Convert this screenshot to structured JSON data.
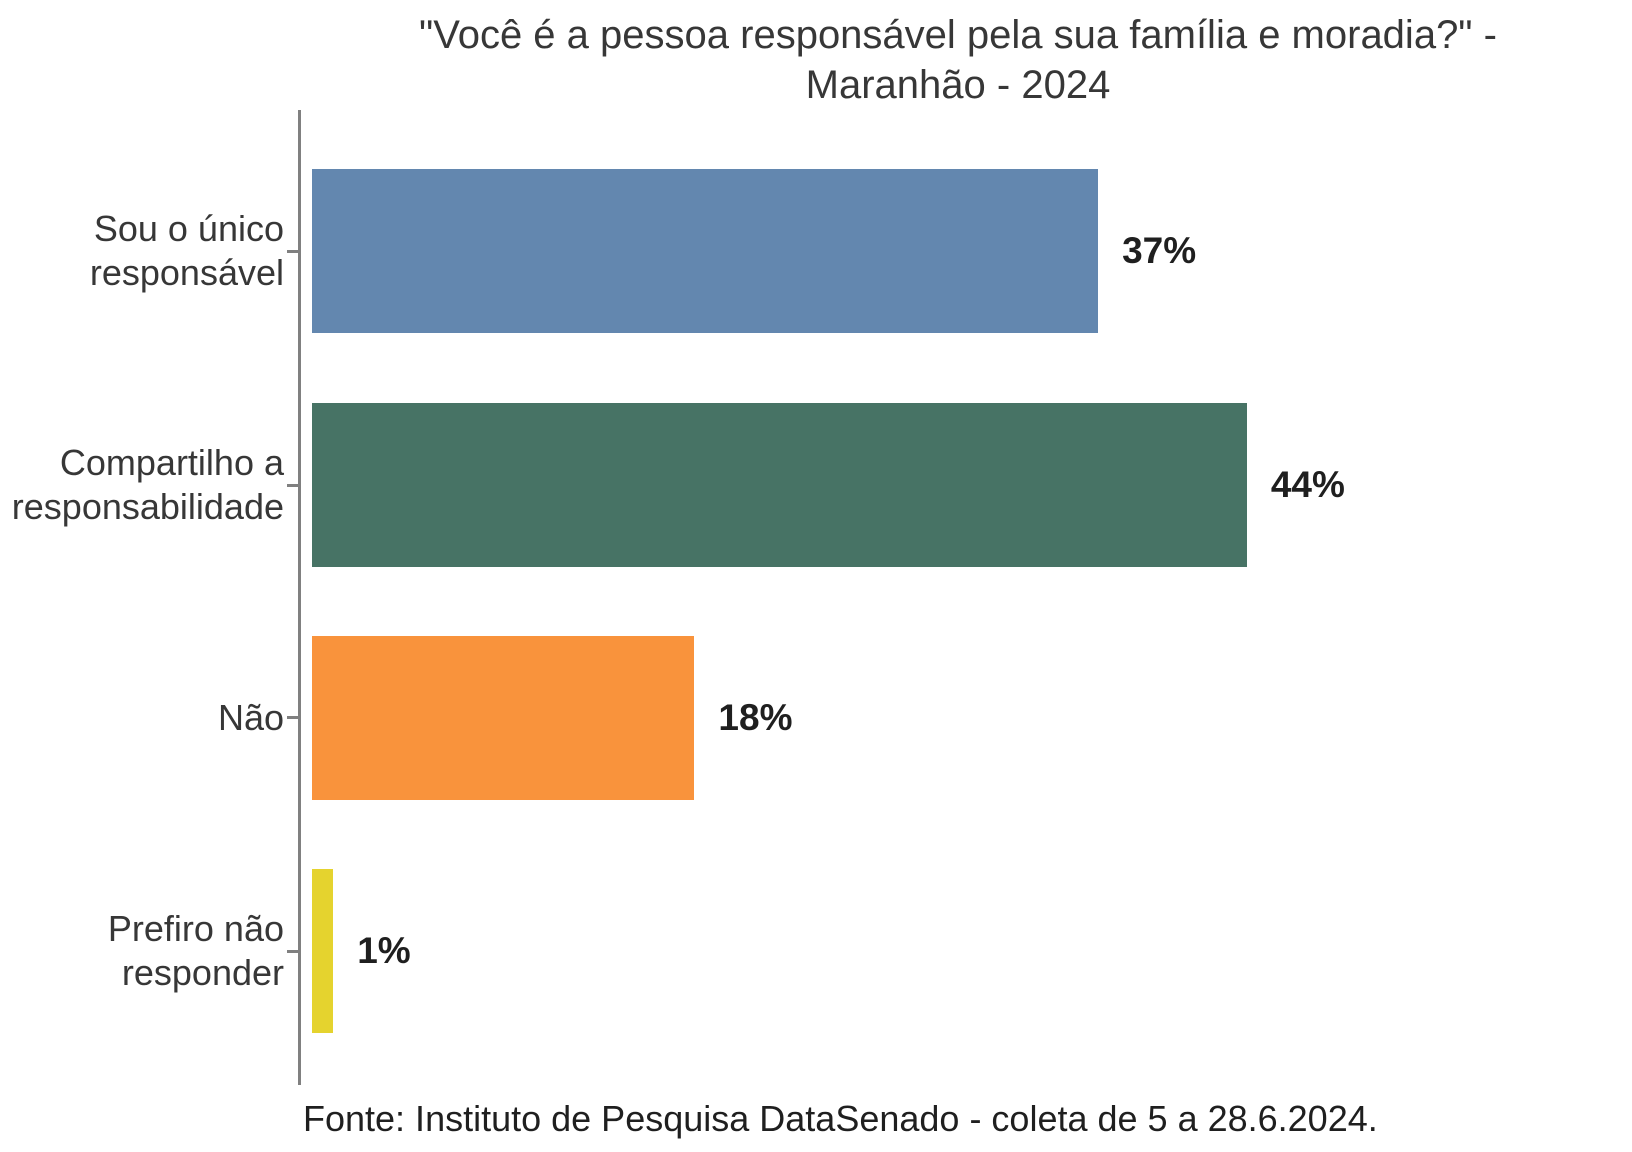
{
  "chart_data": {
    "type": "bar",
    "orientation": "horizontal",
    "title": "\"Você é a pessoa responsável pela sua família e moradia?\" - Maranhão - 2024",
    "title_lines": [
      "\"Você é a pessoa responsável pela sua família e moradia?\" -",
      "Maranhão - 2024"
    ],
    "categories": [
      "Sou o único responsável",
      "Compartilho a responsabilidade",
      "Não",
      "Prefiro não responder"
    ],
    "category_labels_multiline": [
      "Sou o único\nresponsável",
      "Compartilho a\nresponsabilidade",
      "Não",
      "Prefiro não\nresponder"
    ],
    "values": [
      37,
      44,
      18,
      1
    ],
    "value_labels": [
      "37%",
      "44%",
      "18%",
      "1%"
    ],
    "bar_colors": [
      "#6387AF",
      "#477365",
      "#F9933C",
      "#E5D32E"
    ],
    "xlabel": "",
    "ylabel": "",
    "xlim": [
      0,
      62.6
    ],
    "grid": false,
    "legend": false,
    "axis_color": "#808080",
    "text_color": "#373737",
    "value_label_color": "#1F1F1F",
    "background_color": "#FFFFFF",
    "source_note": "Fonte: Instituto de Pesquisa DataSenado - coleta de 5 a 28.6.2024."
  }
}
